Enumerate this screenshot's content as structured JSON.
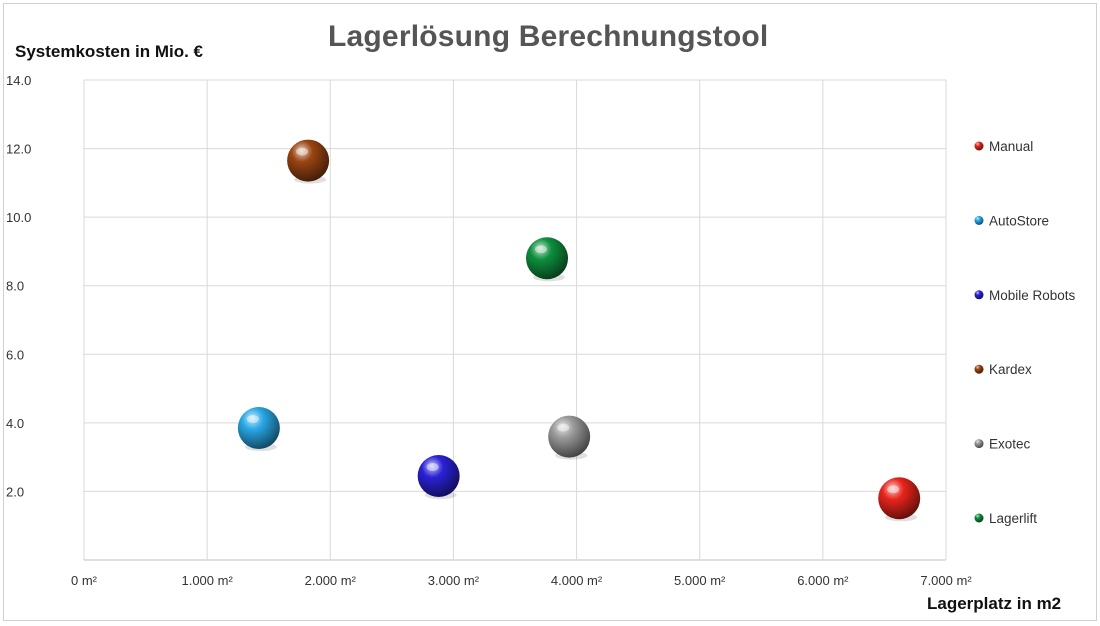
{
  "chart_data": {
    "type": "scatter",
    "title": "Lagerlösung Berechnungstool",
    "xlabel": "Lagerplatz in m2",
    "ylabel": "Systemkosten in Mio. €",
    "xlim": [
      0,
      7000
    ],
    "ylim": [
      0,
      14
    ],
    "x_ticks": [
      {
        "value": 0,
        "label": "0 m²"
      },
      {
        "value": 1000,
        "label": "1.000 m²"
      },
      {
        "value": 2000,
        "label": "2.000 m²"
      },
      {
        "value": 3000,
        "label": "3.000 m²"
      },
      {
        "value": 4000,
        "label": "4.000 m²"
      },
      {
        "value": 5000,
        "label": "5.000 m²"
      },
      {
        "value": 6000,
        "label": "6.000 m²"
      },
      {
        "value": 7000,
        "label": "7.000 m²"
      }
    ],
    "y_ticks": [
      {
        "value": 2,
        "label": "2.0"
      },
      {
        "value": 4,
        "label": "4.0"
      },
      {
        "value": 6,
        "label": "6.0"
      },
      {
        "value": 8,
        "label": "8.0"
      },
      {
        "value": 10,
        "label": "10.0"
      },
      {
        "value": 12,
        "label": "12.0"
      },
      {
        "value": 14,
        "label": "14.0"
      }
    ],
    "grid": true,
    "legend_position": "right",
    "series": [
      {
        "name": "Manual",
        "color": "#e8241c",
        "x": [
          6620
        ],
        "y": [
          1.8
        ]
      },
      {
        "name": "AutoStore",
        "color": "#29a8e6",
        "x": [
          1420
        ],
        "y": [
          3.85
        ]
      },
      {
        "name": "Mobile Robots",
        "color": "#2a22d6",
        "x": [
          2880
        ],
        "y": [
          2.45
        ]
      },
      {
        "name": "Kardex",
        "color": "#9a4512",
        "x": [
          1820
        ],
        "y": [
          11.65
        ]
      },
      {
        "name": "Exotec",
        "color": "#9a9a9a",
        "x": [
          3940
        ],
        "y": [
          3.6
        ]
      },
      {
        "name": "Lagerlift",
        "color": "#0e8f3e",
        "x": [
          3760
        ],
        "y": [
          8.8
        ]
      }
    ]
  }
}
